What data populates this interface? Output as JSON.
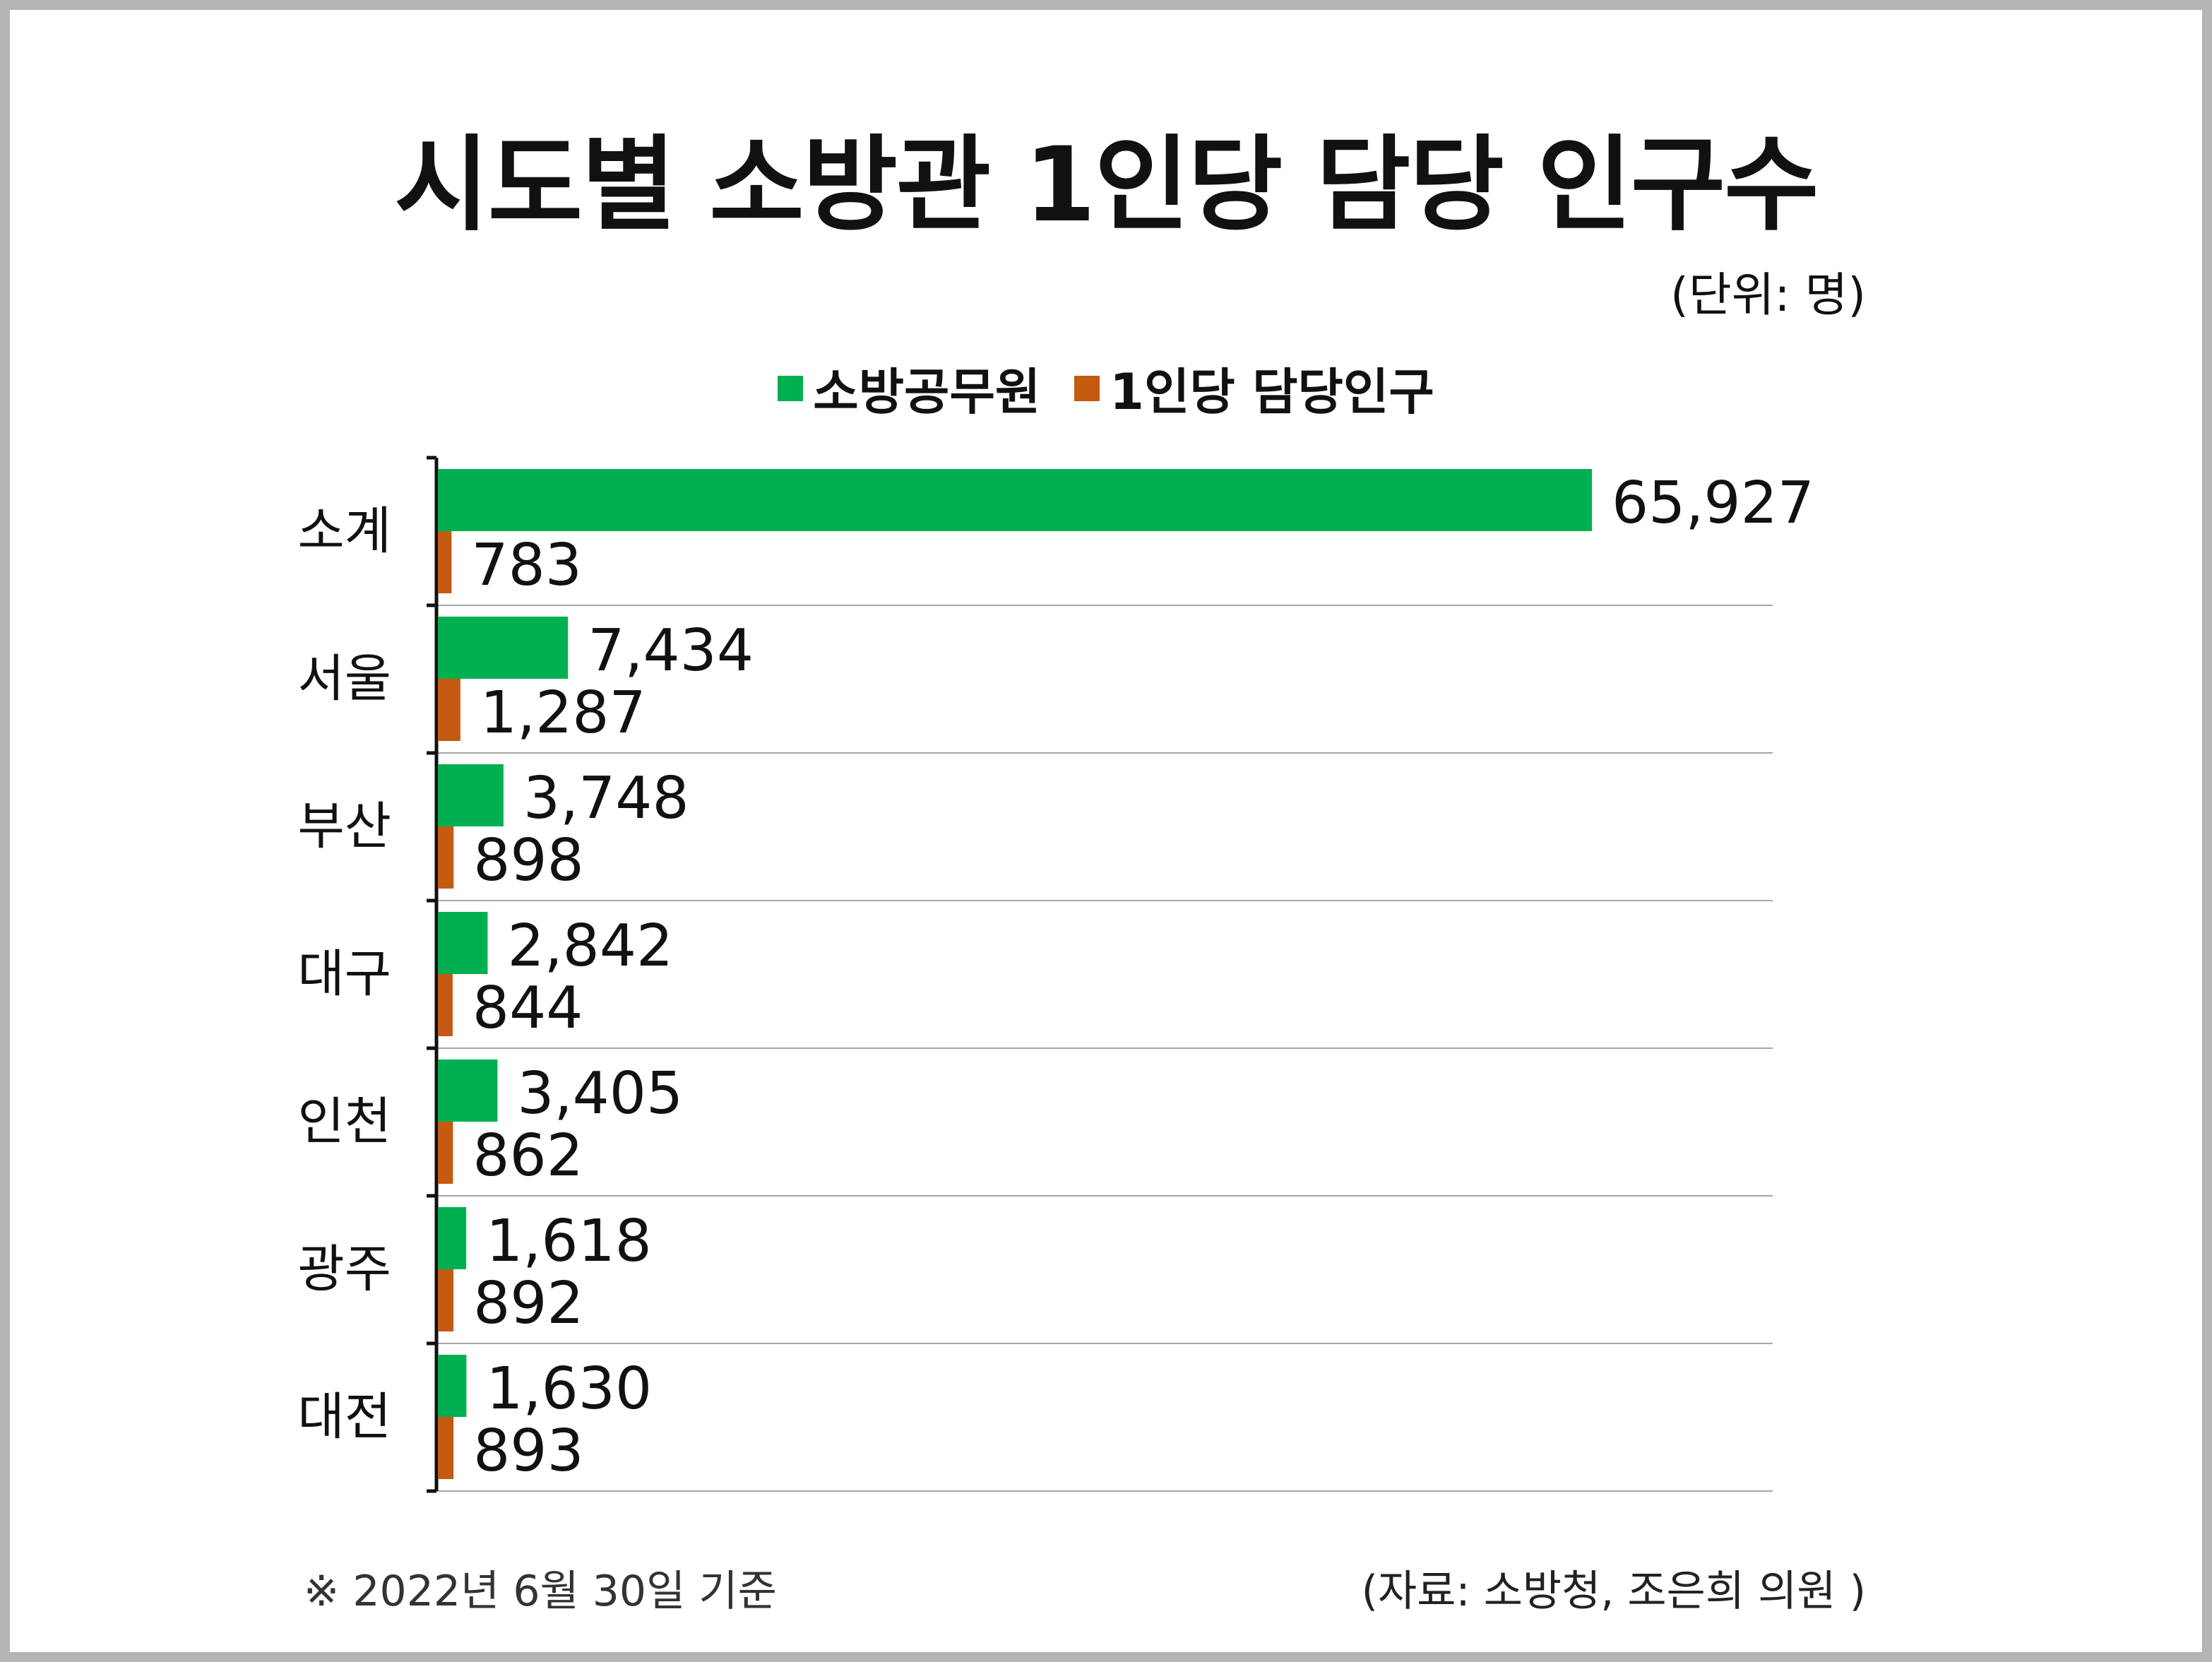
{
  "title": "시도별 소방관 1인당 담당 인구수",
  "unit_label": "(단위: 명)",
  "footnote": "※ 2022년 6월 30일 기준",
  "source": "(자료: 소방청, 조은희 의원 )",
  "chart_data": {
    "type": "bar",
    "orientation": "horizontal",
    "title": "시도별 소방관 1인당 담당 인구수",
    "categories": [
      "소계",
      "서울",
      "부산",
      "대구",
      "인천",
      "광주",
      "대전"
    ],
    "series": [
      {
        "name": "소방공무원",
        "color": "#00b050",
        "values": [
          65927,
          7434,
          3748,
          2842,
          3405,
          1618,
          1630
        ],
        "labels": [
          "65,927",
          "7,434",
          "3,748",
          "2,842",
          "3,405",
          "1,618",
          "1,630"
        ]
      },
      {
        "name": "1인당 담당인구",
        "color": "#c55a11",
        "values": [
          783,
          1287,
          898,
          844,
          862,
          892,
          893
        ],
        "labels": [
          "783",
          "1,287",
          "898",
          "844",
          "862",
          "892",
          "893"
        ]
      }
    ],
    "xlim": [
      0,
      65927
    ],
    "legend_position": "top-center",
    "grid": "horizontal separators"
  }
}
